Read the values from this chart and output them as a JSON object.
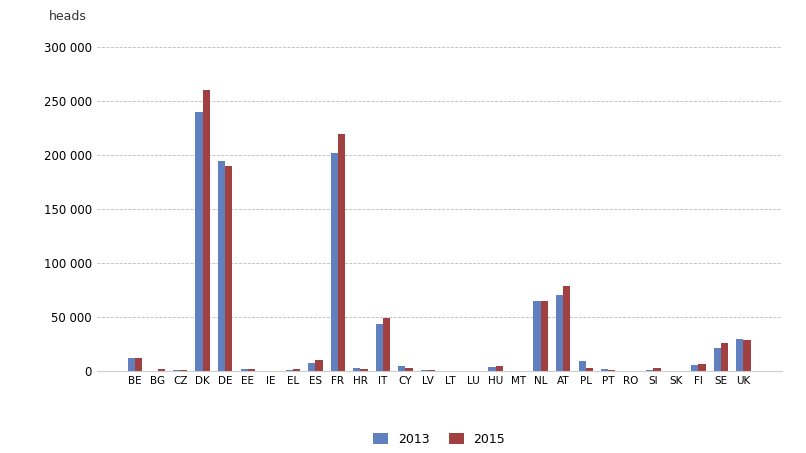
{
  "categories": [
    "BE",
    "BG",
    "CZ",
    "DK",
    "DE",
    "EE",
    "IE",
    "EL",
    "ES",
    "FR",
    "HR",
    "IT",
    "CY",
    "LV",
    "LT",
    "LU",
    "HU",
    "MT",
    "NL",
    "AT",
    "PL",
    "PT",
    "RO",
    "SI",
    "SK",
    "FI",
    "SE",
    "UK"
  ],
  "values_2013": [
    12000,
    500,
    1500,
    240000,
    195000,
    2000,
    300,
    1500,
    8000,
    202000,
    3000,
    44000,
    5000,
    1500,
    500,
    500,
    4000,
    200,
    65000,
    71000,
    10000,
    2000,
    500,
    1000,
    500,
    6000,
    22000,
    30000
  ],
  "values_2015": [
    12000,
    2000,
    1500,
    260000,
    190000,
    2000,
    300,
    2000,
    11000,
    220000,
    2000,
    49000,
    3000,
    1000,
    500,
    500,
    5000,
    200,
    65000,
    79000,
    3000,
    1000,
    500,
    3000,
    500,
    7000,
    26000,
    29000
  ],
  "color_2013": "#6080c0",
  "color_2015": "#a04040",
  "ylabel": "heads",
  "ylim": [
    0,
    310000
  ],
  "yticks": [
    0,
    50000,
    100000,
    150000,
    200000,
    250000,
    300000
  ],
  "legend_2013": "2013",
  "legend_2015": "2015",
  "background_color": "#ffffff",
  "grid_color": "#bbbbbb"
}
